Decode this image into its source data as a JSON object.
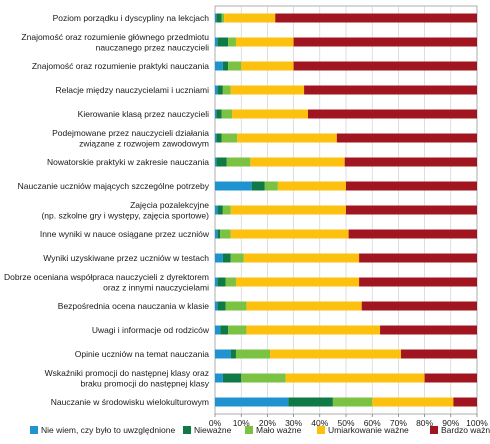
{
  "chart_data": {
    "type": "bar",
    "orientation": "horizontal",
    "stacked": true,
    "categories": [
      "Poziom porządku i dyscypliny na lekcjach",
      "Znajomość oraz rozumienie głównego przedmiotu nauczanego przez nauczycieli",
      "Znajomość oraz rozumienie praktyki nauczania",
      "Relacje między nauczycielami i uczniami",
      "Kierowanie klasą przez nauczycieli",
      "Podejmowane przez nauczycieli działania związane z rozwojem zawodowym",
      "Nowatorskie praktyki w zakresie nauczania",
      "Nauczanie uczniów mających szczególne potrzeby",
      "Zajęcia pozalekcyjne (np. szkolne gry i występy, zajęcia sportowe)",
      "Inne wyniki w nauce osiągane przez uczniów",
      "Wyniki uzyskiwane przez uczniów w testach",
      "Dobrze oceniana współpraca nauczycieli z dyrektorem oraz z innymi nauczycielami",
      "Bezpośrednia ocena nauczania w klasie",
      "Uwagi i informacje od rodziców",
      "Opinie uczniów na temat nauczania",
      "Wskaźniki promocji do następnej klasy oraz braku promocji do następnej klasy",
      "Nauczanie w środowisku wielokulturowym"
    ],
    "category_lines": [
      [
        "Poziom porządku i dyscypliny na lekcjach"
      ],
      [
        "Znajomość oraz rozumienie głównego przedmiotu",
        "nauczanego przez nauczycieli"
      ],
      [
        "Znajomość oraz rozumienie praktyki nauczania"
      ],
      [
        "Relacje między nauczycielami i uczniami"
      ],
      [
        "Kierowanie klasą przez nauczycieli"
      ],
      [
        "Podejmowane przez nauczycieli działania",
        "związane z rozwojem zawodowym"
      ],
      [
        "Nowatorskie praktyki w zakresie nauczania"
      ],
      [
        "Nauczanie uczniów mających szczególne potrzeby"
      ],
      [
        "Zajęcia pozalekcyjne",
        "(np. szkolne gry i występy, zajęcia sportowe)"
      ],
      [
        "Inne wyniki w nauce osiągane przez uczniów"
      ],
      [
        "Wyniki uzyskiwane przez uczniów w testach"
      ],
      [
        "Dobrze oceniana współpraca nauczycieli z dyrektorem",
        "oraz z innymi nauczycielami"
      ],
      [
        "Bezpośrednia ocena nauczania w klasie"
      ],
      [
        "Uwagi i informacje od rodziców"
      ],
      [
        "Opinie uczniów na temat nauczania"
      ],
      [
        "Wskaźniki promocji do następnej klasy oraz",
        "braku promocji do następnej klasy"
      ],
      [
        "Nauczanie w środowisku wielokulturowym"
      ]
    ],
    "series": [
      {
        "name": "Nie wiem, czy było to uwzględnione",
        "color": "#1f93d0",
        "values": [
          0.5,
          1,
          3,
          1,
          0.5,
          0.5,
          0.5,
          14,
          1,
          1,
          3,
          1,
          1,
          2,
          6,
          3,
          28
        ]
      },
      {
        "name": "Nieważne",
        "color": "#0f7a45",
        "values": [
          2,
          4,
          2,
          2,
          2,
          2,
          4,
          5,
          2,
          1,
          3,
          3,
          3,
          3,
          2,
          7,
          17
        ]
      },
      {
        "name": "Mało ważne",
        "color": "#7bc242",
        "values": [
          1,
          3,
          5,
          3,
          4,
          6,
          9,
          5,
          3,
          4,
          5,
          4,
          8,
          7,
          13,
          17,
          15
        ]
      },
      {
        "name": "Umiarkowanie ważne",
        "color": "#fcc10f",
        "values": [
          19.5,
          22,
          20,
          28,
          29,
          38,
          36,
          26,
          44,
          45,
          44,
          47,
          44,
          51,
          50,
          53,
          31
        ]
      },
      {
        "name": "Bardzo ważne",
        "color": "#a01520",
        "values": [
          77,
          70,
          70,
          66,
          64.5,
          53.5,
          50.5,
          50,
          50,
          49,
          45,
          45,
          44,
          37,
          29,
          20,
          9
        ]
      }
    ],
    "x_ticks": [
      "0%",
      "10%",
      "20%",
      "30%",
      "40%",
      "50%",
      "60%",
      "70%",
      "80%",
      "90%",
      "100%"
    ],
    "xlim": [
      0,
      100
    ],
    "grid": true,
    "legend_position": "bottom"
  }
}
